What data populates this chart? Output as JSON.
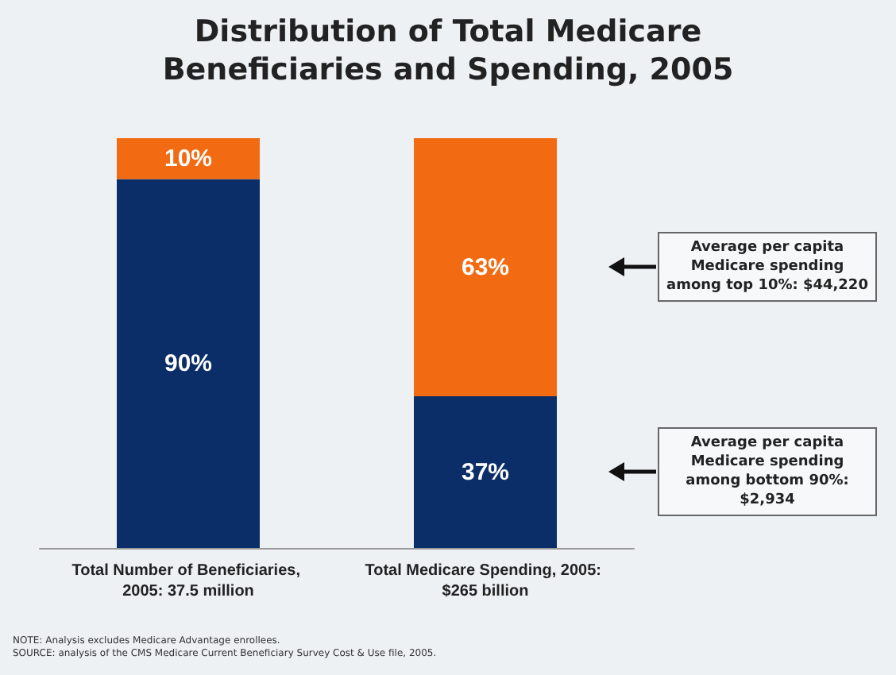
{
  "chart_data": {
    "type": "bar",
    "title": "Distribution of Total Medicare Beneficiaries and Spending, 2005",
    "categories": [
      "Total Number of Beneficiaries, 2005: 37.5 million",
      "Total Medicare Spending, 2005: $265 billion"
    ],
    "stacked": true,
    "tick_labels": "x",
    "series": [
      {
        "color": "#0b2d68",
        "values": [
          90,
          37
        ],
        "value_labels": [
          "90%",
          "37%"
        ]
      },
      {
        "color": "#f26b12",
        "values": [
          10,
          63
        ],
        "value_labels": [
          "10%",
          "63%"
        ]
      }
    ],
    "annotations": [
      "Average per capita Medicare spending among top 10%: $44,220",
      "Average per capita Medicare spending among bottom 90%: $2,934",
      "NOTE: Analysis excludes Medicare Advantage enrollees.",
      "SOURCE: analysis of the CMS Medicare Current Beneficiary Survey Cost & Use file, 2005."
    ]
  }
}
